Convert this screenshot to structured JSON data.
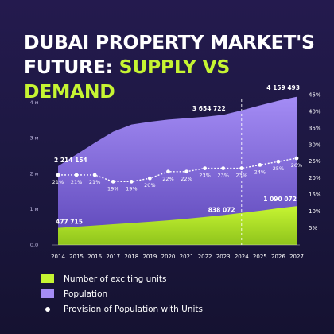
{
  "title": {
    "line1": "DUBAI PROPERTY MARKET'S",
    "line2_prefix": "FUTURE: ",
    "line2_accent": "SUPPLY VS DEMAND"
  },
  "chart_data": {
    "type": "area",
    "x": [
      "2014",
      "2015",
      "2016",
      "2017",
      "2018",
      "2019",
      "2020",
      "2021",
      "2022",
      "2023",
      "2024",
      "2025",
      "2026",
      "2027"
    ],
    "series": [
      {
        "name": "Population",
        "values": [
          2214154,
          2540000,
          2870000,
          3180000,
          3380000,
          3460000,
          3520000,
          3560000,
          3600000,
          3654722,
          3780000,
          3920000,
          4050000,
          4159493
        ]
      },
      {
        "name": "Number of exciting units",
        "values": [
          477715,
          510000,
          545000,
          580000,
          615000,
          650000,
          690000,
          735000,
          785000,
          838072,
          900000,
          960000,
          1030000,
          1090072
        ]
      },
      {
        "name": "Provision of Population with Units",
        "unit": "%",
        "values": [
          21,
          21,
          21,
          19,
          19,
          20,
          22,
          22,
          23,
          23,
          23,
          24,
          25,
          26
        ]
      }
    ],
    "value_labels": {
      "start_population": "2 214 154",
      "start_units": "477 715",
      "pop_2023": "3 654 722",
      "units_2023": "838 072",
      "pop_2027": "4 159 493",
      "units_2027": "1 090 072"
    },
    "left_axis": {
      "ticks": [
        "0.0",
        "1 м",
        "2 м",
        "3 м",
        "4 м"
      ],
      "ylim": [
        0,
        4400000
      ]
    },
    "right_axis": {
      "ticks": [
        "5%",
        "10%",
        "15%",
        "20%",
        "25%",
        "30%",
        "35%",
        "40%",
        "45%"
      ],
      "ylim": [
        0,
        47
      ]
    },
    "forecast_start": "2024",
    "grid": false
  },
  "legend": {
    "units": "Number of exciting units",
    "population": "Population",
    "provision": "Provision of Population with Units"
  },
  "colors": {
    "background": "#1d1842",
    "population_fill": "#a48cf5",
    "units_fill": "#c6f432",
    "accent": "#c6f432",
    "line": "#ffffff"
  }
}
